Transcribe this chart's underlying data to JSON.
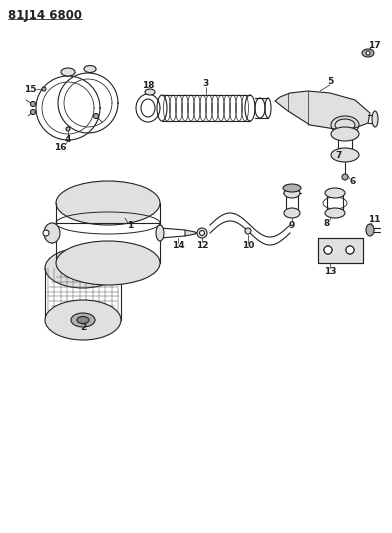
{
  "title": "81J14 6800",
  "bg_color": "#ffffff",
  "fig_width": 3.92,
  "fig_height": 5.33,
  "dpi": 100,
  "line_color": "#222222",
  "label_fontsize": 6.5,
  "title_fontsize": 8.5
}
